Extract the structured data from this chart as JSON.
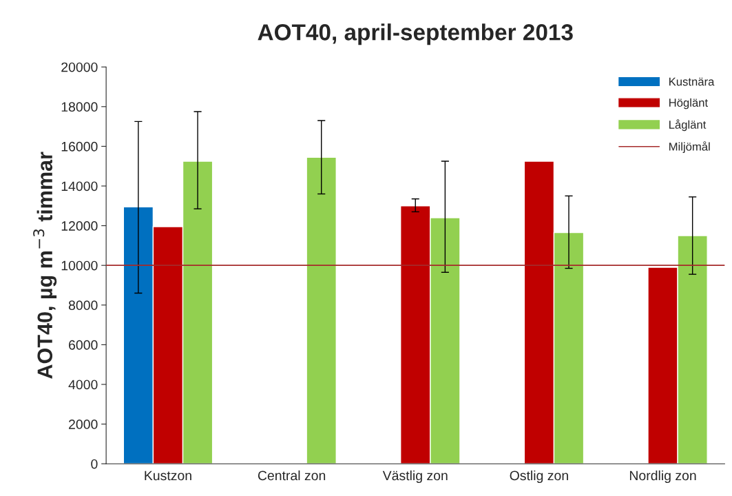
{
  "chart_data": {
    "type": "bar",
    "title": "AOT40, april-september 2013",
    "ylabel": "AOT40, µg m$^{−3}$ timmar",
    "categories": [
      "Kustzon",
      "Central zon",
      "Västlig zon",
      "Ostlig zon",
      "Nordlig zon"
    ],
    "series": [
      {
        "name": "Kustnära",
        "color": "#0070c0",
        "values": [
          12950,
          null,
          null,
          null,
          null
        ],
        "errors": [
          [
            8600,
            17250
          ],
          null,
          null,
          null,
          null
        ]
      },
      {
        "name": "Höglänt",
        "color": "#c00000",
        "values": [
          11950,
          null,
          13000,
          15250,
          9900
        ],
        "errors": [
          null,
          null,
          [
            12700,
            13350
          ],
          null,
          null
        ]
      },
      {
        "name": "Låglänt",
        "color": "#92d050",
        "values": [
          15250,
          15450,
          12400,
          11650,
          11500
        ],
        "errors": [
          [
            12850,
            17750
          ],
          [
            13600,
            17300
          ],
          [
            9650,
            15250
          ],
          [
            9850,
            13500
          ],
          [
            9550,
            13450
          ]
        ]
      }
    ],
    "ref_lines": [
      {
        "axis": "y",
        "value": 10000,
        "label": "Miljömål",
        "color": "#a52a2a"
      }
    ],
    "ylim": [
      0,
      20000
    ],
    "yticks": [
      0,
      2000,
      4000,
      6000,
      8000,
      10000,
      12000,
      14000,
      16000,
      18000,
      20000
    ],
    "grid": false,
    "legend": "top right"
  }
}
